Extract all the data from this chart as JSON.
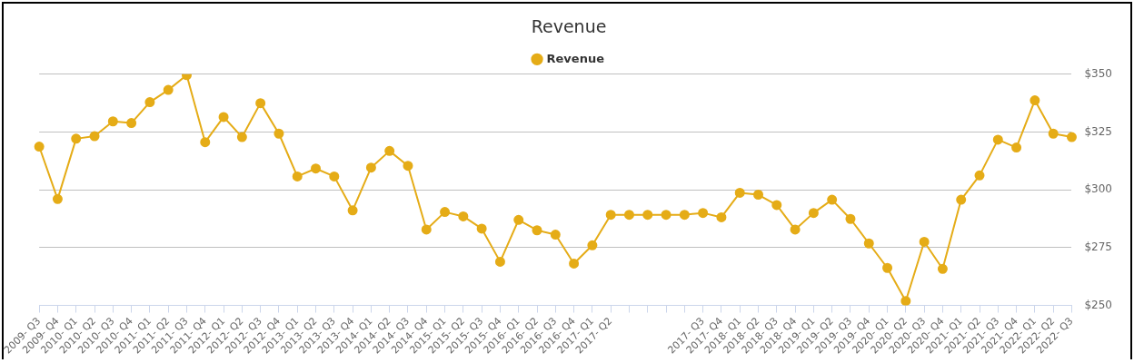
{
  "chart_data": {
    "type": "line",
    "title": "Revenue",
    "categories": [
      "2009- Q3",
      "2009- Q4",
      "2010- Q1",
      "2010- Q2",
      "2010- Q3",
      "2010- Q4",
      "2011- Q1",
      "2011- Q2",
      "2011- Q3",
      "2011- Q4",
      "2012- Q1",
      "2012- Q2",
      "2012- Q3",
      "2012- Q4",
      "2013- Q1",
      "2013- Q2",
      "2013- Q3",
      "2013- Q4",
      "2014- Q1",
      "2014- Q2",
      "2014- Q3",
      "2014- Q4",
      "2015- Q1",
      "2015- Q2",
      "2015- Q3",
      "2015- Q4",
      "2016- Q1",
      "2016- Q2",
      "2016- Q3",
      "2016- Q4",
      "2017- Q1",
      "2017- Q2",
      null,
      null,
      null,
      null,
      "2017- Q3",
      "2017- Q4",
      "2018- Q1",
      "2018- Q2",
      "2018- Q3",
      "2018- Q4",
      "2019- Q1",
      "2019- Q2",
      "2019- Q3",
      "2019- Q4",
      "2020- Q1",
      "2020- Q2",
      "2020- Q3",
      "2020- Q4",
      "2021- Q1",
      "2021- Q2",
      "2021- Q3",
      "2021- Q4",
      "2022- Q1",
      "2022- Q2",
      "2022- Q3"
    ],
    "series": [
      {
        "name": "Revenue",
        "color": "#e5ac17",
        "values": [
          318.7,
          296,
          322.1,
          323.2,
          329.6,
          328.9,
          337.9,
          343.2,
          349.6,
          320.6,
          331.5,
          322.8,
          337.5,
          324.3,
          305.8,
          309.2,
          305.8,
          291.1,
          309.6,
          316.8,
          310.4,
          282.8,
          290.4,
          288.5,
          283.2,
          268.9,
          287,
          282.5,
          280.6,
          268.1,
          276,
          289.2,
          289.2,
          289.2,
          289.2,
          289.2,
          290,
          288.1,
          298.7,
          297.9,
          293.4,
          282.8,
          290,
          295.7,
          287.4,
          276.8,
          266.2,
          251.9,
          277.5,
          265.8,
          295.7,
          306.2,
          321.7,
          318.3,
          338.7,
          324.3,
          322.8
        ]
      }
    ],
    "ylim": [
      250,
      350
    ],
    "yticks": [
      {
        "value": 250,
        "label": "$250"
      },
      {
        "value": 275,
        "label": "$275"
      },
      {
        "value": 300,
        "label": "$300"
      },
      {
        "value": 325,
        "label": "$325"
      },
      {
        "value": 350,
        "label": "$350"
      }
    ],
    "grid": "y",
    "legend": "top",
    "marker": "circle",
    "line_style": "solid"
  }
}
